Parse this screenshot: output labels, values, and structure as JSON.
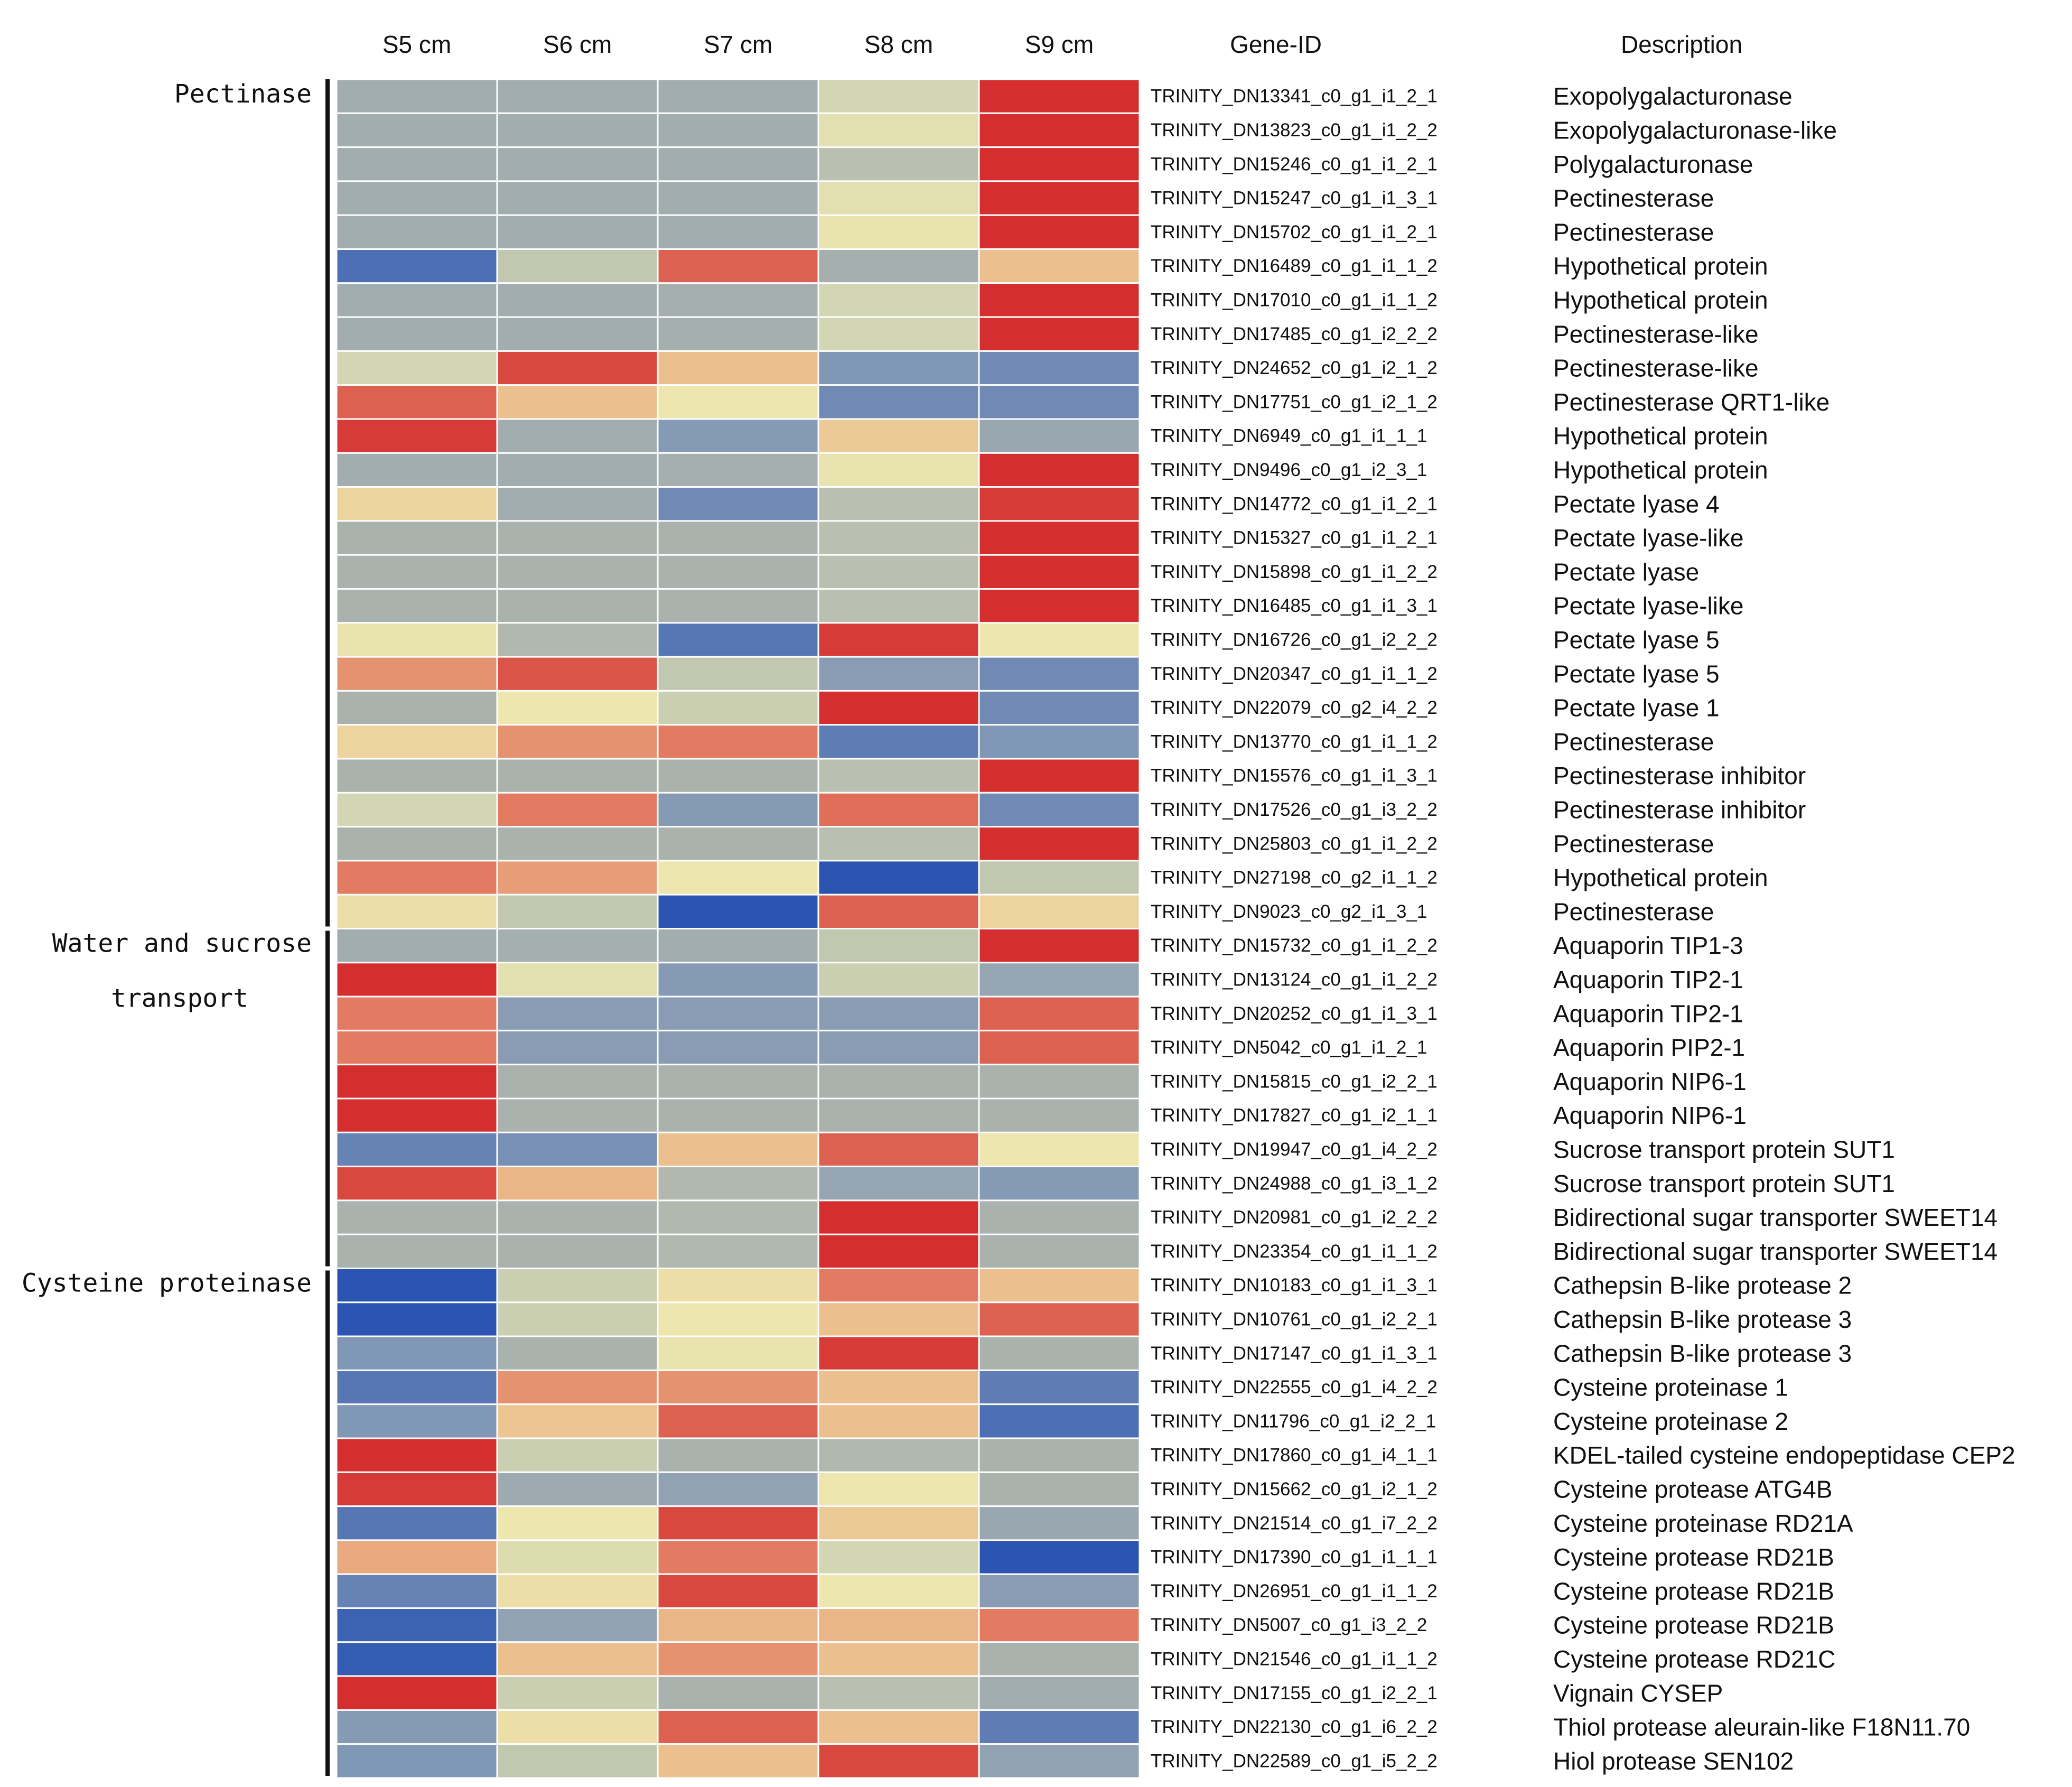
{
  "chart_data": {
    "type": "heatmap",
    "columns": [
      "S5 cm",
      "S6 cm",
      "S7 cm",
      "S8 cm",
      "S9 cm"
    ],
    "gene_header": "Gene-ID",
    "description_header": "Description",
    "color_scale": {
      "min": -2,
      "max": 2,
      "stops": [
        {
          "value": -2,
          "color": "#2b55b1"
        },
        {
          "value": -1,
          "color": "#8197b6"
        },
        {
          "value": 0,
          "color": "#a9b2ad"
        },
        {
          "value": 0.5,
          "color": "#d2d6b2"
        },
        {
          "value": 1,
          "color": "#ede6ae"
        },
        {
          "value": 1.4,
          "color": "#ecc08e"
        },
        {
          "value": 1.7,
          "color": "#e27b62"
        },
        {
          "value": 2,
          "color": "#d42e2e"
        }
      ]
    },
    "groups": [
      {
        "label_lines": [
          "Pectinase"
        ],
        "first_row": 0,
        "last_row": 24
      },
      {
        "label_lines": [
          "Water and sucrose",
          "transport"
        ],
        "first_row": 25,
        "last_row": 34
      },
      {
        "label_lines": [
          "Cysteine proteinase"
        ],
        "first_row": 35,
        "last_row": 49
      }
    ],
    "rows": [
      {
        "gene": "TRINITY_DN13341_c0_g1_i1_2_1",
        "description": "Exopolygalacturonase",
        "values": [
          -0.2,
          -0.2,
          -0.2,
          0.5,
          2.0
        ]
      },
      {
        "gene": "TRINITY_DN13823_c0_g1_i1_2_2",
        "description": "Exopolygalacturonase-like",
        "values": [
          -0.2,
          -0.2,
          -0.2,
          0.8,
          2.0
        ]
      },
      {
        "gene": "TRINITY_DN15246_c0_g1_i1_2_1",
        "description": "Polygalacturonase",
        "values": [
          -0.2,
          -0.2,
          -0.2,
          0.2,
          2.0
        ]
      },
      {
        "gene": "TRINITY_DN15247_c0_g1_i1_3_1",
        "description": "Pectinesterase",
        "values": [
          -0.2,
          -0.2,
          -0.2,
          0.8,
          2.0
        ]
      },
      {
        "gene": "TRINITY_DN15702_c0_g1_i1_2_1",
        "description": "Pectinesterase",
        "values": [
          -0.2,
          -0.2,
          -0.2,
          0.9,
          2.0
        ]
      },
      {
        "gene": "TRINITY_DN16489_c0_g1_i1_1_2",
        "description": "Hypothetical protein",
        "values": [
          -1.6,
          0.3,
          1.8,
          -0.1,
          1.4
        ]
      },
      {
        "gene": "TRINITY_DN17010_c0_g1_i1_1_2",
        "description": "Hypothetical protein",
        "values": [
          -0.2,
          -0.2,
          -0.1,
          0.5,
          2.0
        ]
      },
      {
        "gene": "TRINITY_DN17485_c0_g1_i2_2_2",
        "description": "Pectinesterase-like",
        "values": [
          -0.2,
          -0.2,
          -0.1,
          0.5,
          2.0
        ]
      },
      {
        "gene": "TRINITY_DN24652_c0_g1_i2_1_2",
        "description": "Pectinesterase-like",
        "values": [
          0.5,
          1.9,
          1.4,
          -1.0,
          -1.2
        ]
      },
      {
        "gene": "TRINITY_DN17751_c0_g1_i2_1_2",
        "description": "Pectinesterase QRT1-like",
        "values": [
          1.8,
          1.4,
          1.0,
          -1.2,
          -1.2
        ]
      },
      {
        "gene": "TRINITY_DN6949_c0_g1_i1_1_1",
        "description": "Hypothetical protein",
        "values": [
          1.95,
          -0.2,
          -0.9,
          1.3,
          -0.4
        ]
      },
      {
        "gene": "TRINITY_DN9496_c0_g1_i2_3_1",
        "description": "Hypothetical protein",
        "values": [
          -0.2,
          -0.2,
          -0.1,
          0.9,
          2.0
        ]
      },
      {
        "gene": "TRINITY_DN14772_c0_g1_i1_2_1",
        "description": "Pectate lyase 4",
        "values": [
          1.2,
          -0.2,
          -1.2,
          0.2,
          1.95
        ]
      },
      {
        "gene": "TRINITY_DN15327_c0_g1_i1_2_1",
        "description": "Pectate lyase-like",
        "values": [
          0.0,
          0.0,
          0.0,
          0.2,
          2.0
        ]
      },
      {
        "gene": "TRINITY_DN15898_c0_g1_i1_2_2",
        "description": "Pectate lyase",
        "values": [
          0.0,
          0.0,
          0.0,
          0.2,
          2.0
        ]
      },
      {
        "gene": "TRINITY_DN16485_c0_g1_i1_3_1",
        "description": "Pectate lyase-like",
        "values": [
          0.0,
          0.0,
          0.0,
          0.2,
          2.0
        ]
      },
      {
        "gene": "TRINITY_DN16726_c0_g1_i2_2_2",
        "description": "Pectate lyase 5",
        "values": [
          0.9,
          0.1,
          -1.5,
          1.95,
          1.0
        ]
      },
      {
        "gene": "TRINITY_DN20347_c0_g1_i1_1_2",
        "description": "Pectate lyase 5",
        "values": [
          1.6,
          1.85,
          0.3,
          -0.8,
          -1.2
        ]
      },
      {
        "gene": "TRINITY_DN22079_c0_g2_i4_2_2",
        "description": "Pectate lyase 1",
        "values": [
          0.0,
          1.0,
          0.4,
          2.0,
          -1.2
        ]
      },
      {
        "gene": "TRINITY_DN13770_c0_g1_i1_1_2",
        "description": "Pectinesterase",
        "values": [
          1.2,
          1.6,
          1.7,
          -1.4,
          -1.0
        ]
      },
      {
        "gene": "TRINITY_DN15576_c0_g1_i1_3_1",
        "description": "Pectinesterase inhibitor",
        "values": [
          0.0,
          0.0,
          0.0,
          0.2,
          2.0
        ]
      },
      {
        "gene": "TRINITY_DN17526_c0_g1_i3_2_2",
        "description": "Pectinesterase inhibitor",
        "values": [
          0.5,
          1.7,
          -0.9,
          1.75,
          -1.2
        ]
      },
      {
        "gene": "TRINITY_DN25803_c0_g1_i1_2_2",
        "description": "Pectinesterase",
        "values": [
          0.0,
          0.0,
          0.0,
          0.2,
          2.0
        ]
      },
      {
        "gene": "TRINITY_DN27198_c0_g2_i1_1_2",
        "description": "Hypothetical protein",
        "values": [
          1.7,
          1.55,
          1.0,
          -2.0,
          0.3
        ]
      },
      {
        "gene": "TRINITY_DN9023_c0_g2_i1_3_1",
        "description": "Pectinesterase",
        "values": [
          1.1,
          0.3,
          -2.0,
          1.8,
          1.2
        ]
      },
      {
        "gene": "TRINITY_DN15732_c0_g1_i1_2_2",
        "description": "Aquaporin TIP1-3",
        "values": [
          -0.2,
          -0.1,
          -0.2,
          0.3,
          2.0
        ]
      },
      {
        "gene": "TRINITY_DN13124_c0_g1_i1_2_2",
        "description": "Aquaporin TIP2-1",
        "values": [
          2.0,
          0.8,
          -0.9,
          0.4,
          -0.5
        ]
      },
      {
        "gene": "TRINITY_DN20252_c0_g1_i1_3_1",
        "description": "Aquaporin TIP2-1",
        "values": [
          1.7,
          -0.8,
          -0.8,
          -0.8,
          1.8
        ]
      },
      {
        "gene": "TRINITY_DN5042_c0_g1_i1_2_1",
        "description": "Aquaporin PIP2-1",
        "values": [
          1.7,
          -0.8,
          -0.8,
          -0.8,
          1.8
        ]
      },
      {
        "gene": "TRINITY_DN15815_c0_g1_i2_2_1",
        "description": "Aquaporin NIP6-1",
        "values": [
          2.0,
          0.0,
          0.0,
          0.0,
          0.0
        ]
      },
      {
        "gene": "TRINITY_DN17827_c0_g1_i2_1_1",
        "description": "Aquaporin NIP6-1",
        "values": [
          2.0,
          0.0,
          0.0,
          0.0,
          0.0
        ]
      },
      {
        "gene": "TRINITY_DN19947_c0_g1_i4_2_2",
        "description": "Sucrose transport protein SUT1",
        "values": [
          -1.3,
          -1.1,
          1.4,
          1.8,
          1.0
        ]
      },
      {
        "gene": "TRINITY_DN24988_c0_g1_i3_1_2",
        "description": "Sucrose transport protein SUT1",
        "values": [
          1.9,
          1.45,
          0.1,
          -0.5,
          -0.9
        ]
      },
      {
        "gene": "TRINITY_DN20981_c0_g1_i2_2_2",
        "description": "Bidirectional sugar transporter SWEET14",
        "values": [
          0.0,
          0.0,
          0.1,
          2.0,
          0.0
        ]
      },
      {
        "gene": "TRINITY_DN23354_c0_g1_i1_1_2",
        "description": "Bidirectional sugar transporter SWEET14",
        "values": [
          0.0,
          0.0,
          0.1,
          2.0,
          0.0
        ]
      },
      {
        "gene": "TRINITY_DN10183_c0_g1_i1_3_1",
        "description": "Cathepsin B-like protease 2",
        "values": [
          -2.0,
          0.4,
          1.1,
          1.7,
          1.4
        ]
      },
      {
        "gene": "TRINITY_DN10761_c0_g1_i2_2_1",
        "description": "Cathepsin B-like protease 3",
        "values": [
          -2.0,
          0.4,
          1.0,
          1.4,
          1.8
        ]
      },
      {
        "gene": "TRINITY_DN17147_c0_g1_i1_3_1",
        "description": "Cathepsin B-like protease 3",
        "values": [
          -1.0,
          0.0,
          0.9,
          1.95,
          0.0
        ]
      },
      {
        "gene": "TRINITY_DN22555_c0_g1_i4_2_2",
        "description": "Cysteine proteinase 1",
        "values": [
          -1.5,
          1.6,
          1.6,
          1.4,
          -1.4
        ]
      },
      {
        "gene": "TRINITY_DN11796_c0_g1_i2_2_1",
        "description": "Cysteine proteinase 2",
        "values": [
          -1.0,
          1.35,
          1.8,
          1.4,
          -1.6
        ]
      },
      {
        "gene": "TRINITY_DN17860_c0_g1_i4_1_1",
        "description": "KDEL-tailed cysteine endopeptidase CEP2",
        "values": [
          2.0,
          0.4,
          0.0,
          0.1,
          0.0
        ]
      },
      {
        "gene": "TRINITY_DN15662_c0_g1_i2_1_2",
        "description": "Cysteine protease ATG4B",
        "values": [
          1.95,
          -0.3,
          -0.6,
          1.0,
          0.0
        ]
      },
      {
        "gene": "TRINITY_DN21514_c0_g1_i7_2_2",
        "description": "Cysteine proteinase RD21A",
        "values": [
          -1.5,
          1.0,
          1.9,
          1.3,
          -0.4
        ]
      },
      {
        "gene": "TRINITY_DN17390_c0_g1_i1_1_1",
        "description": "Cysteine protease RD21B",
        "values": [
          1.5,
          0.7,
          1.7,
          0.5,
          -2.0
        ]
      },
      {
        "gene": "TRINITY_DN26951_c0_g1_i1_1_2",
        "description": "Cysteine protease RD21B",
        "values": [
          -1.3,
          1.1,
          1.9,
          1.0,
          -0.8
        ]
      },
      {
        "gene": "TRINITY_DN5007_c0_g1_i3_2_2",
        "description": "Cysteine protease RD21B",
        "values": [
          -1.8,
          -0.6,
          1.45,
          1.45,
          1.7
        ]
      },
      {
        "gene": "TRINITY_DN21546_c0_g1_i1_1_2",
        "description": "Cysteine protease RD21C",
        "values": [
          -1.9,
          1.4,
          1.6,
          1.4,
          0.0
        ]
      },
      {
        "gene": "TRINITY_DN17155_c0_g1_i2_2_1",
        "description": "Vignain CYSEP",
        "values": [
          2.0,
          0.4,
          0.0,
          0.2,
          -0.2
        ]
      },
      {
        "gene": "TRINITY_DN22130_c0_g1_i6_2_2",
        "description": "Thiol protease aleurain-like F18N11.70",
        "values": [
          -0.9,
          1.1,
          1.8,
          1.4,
          -1.4
        ]
      },
      {
        "gene": "TRINITY_DN22589_c0_g1_i5_2_2",
        "description": "Hiol protease SEN102",
        "values": [
          -1.0,
          0.3,
          1.4,
          1.9,
          -0.6
        ]
      }
    ]
  }
}
